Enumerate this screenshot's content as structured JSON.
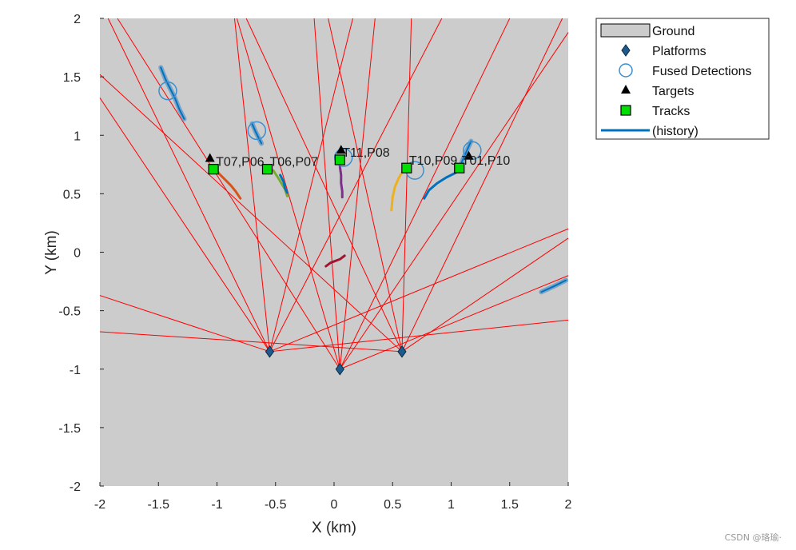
{
  "chart_data": {
    "type": "scatter",
    "title": "",
    "xlabel": "X (km)",
    "ylabel": "Y (km)",
    "xlim": [
      -2,
      2
    ],
    "ylim": [
      -2,
      2
    ],
    "xticks": [
      -2,
      -1.5,
      -1,
      -0.5,
      0,
      0.5,
      1,
      1.5,
      2
    ],
    "yticks": [
      -2,
      -1.5,
      -1,
      -0.5,
      0,
      0.5,
      1,
      1.5,
      2
    ],
    "xtick_labels": [
      "-2",
      "-1.5",
      "-1",
      "-0.5",
      "0",
      "0.5",
      "1",
      "1.5",
      "2"
    ],
    "ytick_labels": [
      "-2",
      "-1.5",
      "-1",
      "-0.5",
      "0",
      "0.5",
      "1",
      "1.5",
      "2"
    ],
    "grid": false,
    "legend_position": "outside-top-right",
    "legend": [
      {
        "label": "Ground",
        "marker": "rect"
      },
      {
        "label": "Platforms",
        "marker": "diamond"
      },
      {
        "label": "Fused Detections",
        "marker": "circle"
      },
      {
        "label": "Targets",
        "marker": "triangle"
      },
      {
        "label": "Tracks",
        "marker": "square"
      },
      {
        "label": "(history)",
        "marker": "line"
      }
    ],
    "colors": {
      "ground": "#cccccc",
      "platform": "#1f5a8c",
      "detection": "#3b8fd0",
      "target": "#000000",
      "track": "#00dd00",
      "history": "#0072bd",
      "sensor_ray": "#ff0000"
    },
    "platforms": [
      {
        "x": -0.55,
        "y": -0.85
      },
      {
        "x": 0.05,
        "y": -1.0
      },
      {
        "x": 0.58,
        "y": -0.85
      }
    ],
    "sensor_rays": [
      {
        "from": [
          -0.55,
          -0.85
        ],
        "to": [
          -1.93,
          2.0
        ]
      },
      {
        "from": [
          -0.55,
          -0.85
        ],
        "to": [
          -0.85,
          2.0
        ]
      },
      {
        "from": [
          -0.55,
          -0.85
        ],
        "to": [
          -2.0,
          1.32
        ]
      },
      {
        "from": [
          -0.55,
          -0.85
        ],
        "to": [
          -2.0,
          -0.37
        ]
      },
      {
        "from": [
          -0.55,
          -0.85
        ],
        "to": [
          2.0,
          -0.58
        ]
      },
      {
        "from": [
          -0.55,
          -0.85
        ],
        "to": [
          2.0,
          0.2
        ]
      },
      {
        "from": [
          -0.55,
          -0.85
        ],
        "to": [
          0.16,
          2.0
        ]
      },
      {
        "from": [
          -0.55,
          -0.85
        ],
        "to": [
          0.92,
          2.0
        ]
      },
      {
        "from": [
          0.05,
          -1.0
        ],
        "to": [
          -1.85,
          2.0
        ]
      },
      {
        "from": [
          0.05,
          -1.0
        ],
        "to": [
          -0.83,
          2.0
        ]
      },
      {
        "from": [
          0.05,
          -1.0
        ],
        "to": [
          -0.17,
          2.0
        ]
      },
      {
        "from": [
          0.05,
          -1.0
        ],
        "to": [
          0.35,
          2.0
        ]
      },
      {
        "from": [
          0.05,
          -1.0
        ],
        "to": [
          1.5,
          2.0
        ]
      },
      {
        "from": [
          0.05,
          -1.0
        ],
        "to": [
          2.0,
          1.88
        ]
      },
      {
        "from": [
          0.05,
          -1.0
        ],
        "to": [
          2.0,
          -0.2
        ]
      },
      {
        "from": [
          0.58,
          -0.85
        ],
        "to": [
          -2.0,
          -0.68
        ]
      },
      {
        "from": [
          0.58,
          -0.85
        ],
        "to": [
          -2.0,
          1.52
        ]
      },
      {
        "from": [
          0.58,
          -0.85
        ],
        "to": [
          -0.75,
          2.0
        ]
      },
      {
        "from": [
          0.58,
          -0.85
        ],
        "to": [
          -0.05,
          2.0
        ]
      },
      {
        "from": [
          0.58,
          -0.85
        ],
        "to": [
          0.66,
          2.0
        ]
      },
      {
        "from": [
          0.58,
          -0.85
        ],
        "to": [
          1.95,
          2.0
        ]
      },
      {
        "from": [
          0.58,
          -0.85
        ],
        "to": [
          2.0,
          0.12
        ]
      }
    ],
    "targets": [
      {
        "x": -1.06,
        "y": 0.8
      },
      {
        "x": 0.06,
        "y": 0.87
      },
      {
        "x": 1.15,
        "y": 0.82
      }
    ],
    "fused_detections": [
      {
        "x": -1.42,
        "y": 1.38
      },
      {
        "x": -0.66,
        "y": 1.04
      },
      {
        "x": 0.08,
        "y": 0.81
      },
      {
        "x": 0.69,
        "y": 0.7
      },
      {
        "x": 1.18,
        "y": 0.87
      }
    ],
    "tracks": [
      {
        "label": "T07,P06",
        "x": -1.03,
        "y": 0.71
      },
      {
        "label": "T06,P07",
        "x": -0.57,
        "y": 0.71
      },
      {
        "label": "T11,P08",
        "x": 0.05,
        "y": 0.79
      },
      {
        "label": "T10,P09",
        "x": 0.62,
        "y": 0.72
      },
      {
        "label": "T01,P10",
        "x": 1.07,
        "y": 0.72
      }
    ],
    "detection_clusters": [
      {
        "color": "#0072bd",
        "points": [
          [
            -1.48,
            1.58
          ],
          [
            -1.44,
            1.48
          ],
          [
            -1.4,
            1.4
          ],
          [
            -1.36,
            1.32
          ],
          [
            -1.32,
            1.22
          ],
          [
            -1.28,
            1.14
          ]
        ]
      },
      {
        "color": "#0072bd",
        "points": [
          [
            -0.7,
            1.1
          ],
          [
            -0.67,
            1.03
          ],
          [
            -0.64,
            0.97
          ],
          [
            -0.62,
            0.93
          ]
        ]
      },
      {
        "color": "#0072bd",
        "points": [
          [
            1.17,
            0.95
          ],
          [
            1.13,
            0.86
          ],
          [
            1.09,
            0.77
          ]
        ]
      },
      {
        "color": "#0072bd",
        "points": [
          [
            1.77,
            -0.34
          ],
          [
            1.88,
            -0.29
          ],
          [
            1.98,
            -0.24
          ]
        ]
      }
    ],
    "history_tracks": [
      {
        "color": "#d95319",
        "points": [
          [
            -1.02,
            0.72
          ],
          [
            -0.98,
            0.67
          ],
          [
            -0.93,
            0.62
          ],
          [
            -0.88,
            0.57
          ],
          [
            -0.84,
            0.52
          ],
          [
            -0.8,
            0.46
          ]
        ]
      },
      {
        "color": "#77ac30",
        "points": [
          [
            -0.52,
            0.7
          ],
          [
            -0.48,
            0.64
          ],
          [
            -0.45,
            0.59
          ],
          [
            -0.42,
            0.54
          ],
          [
            -0.4,
            0.48
          ]
        ]
      },
      {
        "color": "#0072bd",
        "points": [
          [
            -0.46,
            0.66
          ],
          [
            -0.43,
            0.6
          ],
          [
            -0.42,
            0.55
          ],
          [
            -0.4,
            0.51
          ]
        ]
      },
      {
        "color": "#7e2f8e",
        "points": [
          [
            0.05,
            0.73
          ],
          [
            0.06,
            0.66
          ],
          [
            0.06,
            0.59
          ],
          [
            0.07,
            0.52
          ],
          [
            0.07,
            0.47
          ]
        ]
      },
      {
        "color": "#edb120",
        "points": [
          [
            0.59,
            0.7
          ],
          [
            0.55,
            0.63
          ],
          [
            0.52,
            0.56
          ],
          [
            0.5,
            0.47
          ],
          [
            0.49,
            0.36
          ]
        ]
      },
      {
        "color": "#0072bd",
        "points": [
          [
            1.04,
            0.68
          ],
          [
            0.96,
            0.64
          ],
          [
            0.88,
            0.59
          ],
          [
            0.81,
            0.53
          ],
          [
            0.77,
            0.46
          ]
        ]
      },
      {
        "color": "#a2142f",
        "points": [
          [
            -0.07,
            -0.12
          ],
          [
            -0.03,
            -0.09
          ],
          [
            0.05,
            -0.06
          ],
          [
            0.09,
            -0.03
          ]
        ]
      }
    ]
  },
  "watermark": "CSDN @珞瑜·"
}
